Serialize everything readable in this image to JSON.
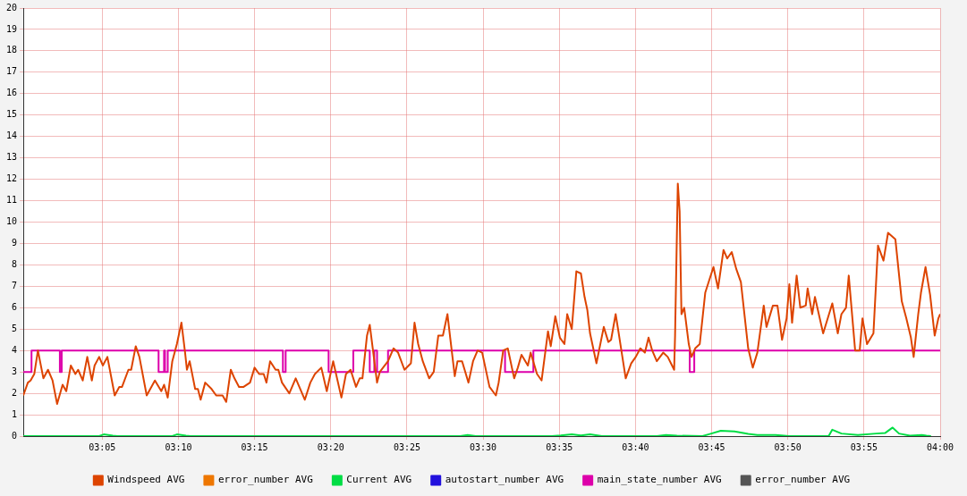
{
  "chart_data": {
    "type": "line",
    "xlim": [
      2.997,
      4.0
    ],
    "ylim": [
      0,
      20
    ],
    "xticks": [
      {
        "value": 3.0833,
        "label": "03:05"
      },
      {
        "value": 3.1667,
        "label": "03:10"
      },
      {
        "value": 3.25,
        "label": "03:15"
      },
      {
        "value": 3.3333,
        "label": "03:20"
      },
      {
        "value": 3.4167,
        "label": "03:25"
      },
      {
        "value": 3.5,
        "label": "03:30"
      },
      {
        "value": 3.5833,
        "label": "03:35"
      },
      {
        "value": 3.6667,
        "label": "03:40"
      },
      {
        "value": 3.75,
        "label": "03:45"
      },
      {
        "value": 3.8333,
        "label": "03:50"
      },
      {
        "value": 3.9167,
        "label": "03:55"
      },
      {
        "value": 4.0,
        "label": "04:00"
      }
    ],
    "yticks": [
      0,
      1,
      2,
      3,
      4,
      5,
      6,
      7,
      8,
      9,
      10,
      11,
      12,
      13,
      14,
      15,
      16,
      17,
      18,
      19,
      20
    ],
    "grid": true,
    "legend": "bottom",
    "marker": "none",
    "line_style": "solid",
    "series": [
      {
        "name": "Windspeed AVG",
        "color": "#dd4400",
        "x": [
          2.997,
          3.002,
          3.005,
          3.009,
          3.013,
          3.019,
          3.024,
          3.029,
          3.034,
          3.04,
          3.044,
          3.049,
          3.054,
          3.057,
          3.062,
          3.067,
          3.072,
          3.075,
          3.08,
          3.084,
          3.089,
          3.097,
          3.102,
          3.105,
          3.112,
          3.115,
          3.12,
          3.124,
          3.132,
          3.141,
          3.148,
          3.151,
          3.155,
          3.16,
          3.165,
          3.17,
          3.174,
          3.176,
          3.179,
          3.185,
          3.188,
          3.191,
          3.196,
          3.203,
          3.208,
          3.215,
          3.219,
          3.224,
          3.228,
          3.233,
          3.238,
          3.245,
          3.25,
          3.255,
          3.26,
          3.263,
          3.267,
          3.273,
          3.276,
          3.28,
          3.288,
          3.295,
          3.305,
          3.311,
          3.316,
          3.323,
          3.329,
          3.336,
          3.345,
          3.35,
          3.355,
          3.361,
          3.365,
          3.368,
          3.373,
          3.376,
          3.384,
          3.387,
          3.396,
          3.402,
          3.407,
          3.414,
          3.421,
          3.425,
          3.429,
          3.434,
          3.441,
          3.446,
          3.451,
          3.456,
          3.461,
          3.464,
          3.469,
          3.472,
          3.477,
          3.484,
          3.489,
          3.494,
          3.499,
          3.507,
          3.514,
          3.517,
          3.522,
          3.527,
          3.534,
          3.538,
          3.542,
          3.549,
          3.552,
          3.559,
          3.564,
          3.571,
          3.574,
          3.579,
          3.584,
          3.589,
          3.592,
          3.597,
          3.602,
          3.607,
          3.611,
          3.614,
          3.617,
          3.624,
          3.632,
          3.637,
          3.64,
          3.645,
          3.648,
          3.656,
          3.662,
          3.667,
          3.672,
          3.677,
          3.681,
          3.685,
          3.69,
          3.697,
          3.702,
          3.709,
          3.71,
          3.713,
          3.715,
          3.717,
          3.72,
          3.725,
          3.728,
          3.732,
          3.737,
          3.743,
          3.752,
          3.757,
          3.763,
          3.767,
          3.772,
          3.777,
          3.782,
          3.79,
          3.795,
          3.8,
          3.807,
          3.81,
          3.817,
          3.822,
          3.827,
          3.832,
          3.835,
          3.838,
          3.843,
          3.847,
          3.853,
          3.855,
          3.86,
          3.863,
          3.872,
          3.877,
          3.882,
          3.888,
          3.892,
          3.897,
          3.9,
          3.907,
          3.912,
          3.915,
          3.92,
          3.927,
          3.932,
          3.938,
          3.943,
          3.951,
          3.958,
          3.963,
          3.968,
          3.971,
          3.976,
          3.979,
          3.984,
          3.989,
          3.994,
          3.998,
          4.0
        ],
        "values": [
          1.9,
          2.5,
          2.6,
          2.9,
          4.0,
          2.7,
          3.1,
          2.6,
          1.5,
          2.4,
          2.1,
          3.3,
          2.9,
          3.1,
          2.6,
          3.7,
          2.6,
          3.3,
          3.7,
          3.3,
          3.7,
          1.9,
          2.3,
          2.3,
          3.1,
          3.1,
          4.2,
          3.7,
          1.9,
          2.6,
          2.1,
          2.4,
          1.8,
          3.5,
          4.3,
          5.3,
          3.9,
          3.1,
          3.5,
          2.2,
          2.2,
          1.7,
          2.5,
          2.2,
          1.9,
          1.9,
          1.6,
          3.1,
          2.7,
          2.3,
          2.3,
          2.5,
          3.2,
          2.9,
          2.9,
          2.5,
          3.5,
          3.1,
          3.1,
          2.5,
          2.0,
          2.7,
          1.7,
          2.5,
          2.9,
          3.2,
          2.1,
          3.5,
          1.8,
          2.9,
          3.1,
          2.3,
          2.7,
          2.7,
          4.7,
          5.2,
          2.5,
          3.0,
          3.5,
          4.1,
          3.9,
          3.1,
          3.4,
          5.3,
          4.3,
          3.5,
          2.7,
          3.0,
          4.7,
          4.7,
          5.7,
          4.6,
          2.8,
          3.5,
          3.5,
          2.5,
          3.5,
          4.0,
          3.9,
          2.3,
          1.9,
          2.5,
          4.0,
          4.1,
          2.7,
          3.2,
          3.8,
          3.3,
          3.9,
          2.9,
          2.6,
          4.9,
          4.2,
          5.6,
          4.6,
          4.3,
          5.7,
          5.0,
          7.7,
          7.6,
          6.5,
          5.9,
          4.8,
          3.4,
          5.1,
          4.4,
          4.5,
          5.7,
          4.9,
          2.7,
          3.4,
          3.7,
          4.1,
          3.9,
          4.6,
          4.0,
          3.5,
          3.9,
          3.7,
          3.1,
          4.7,
          11.8,
          10.5,
          5.7,
          6.0,
          4.3,
          3.7,
          4.1,
          4.3,
          6.7,
          7.9,
          6.9,
          8.7,
          8.3,
          8.6,
          7.8,
          7.2,
          4.1,
          3.2,
          3.9,
          6.1,
          5.1,
          6.1,
          6.1,
          4.5,
          5.5,
          7.1,
          5.3,
          7.5,
          6.0,
          6.1,
          6.9,
          5.7,
          6.5,
          4.8,
          5.5,
          6.2,
          4.8,
          5.7,
          6.0,
          7.5,
          4.0,
          4.0,
          5.5,
          4.3,
          4.8,
          8.9,
          8.2,
          9.5,
          9.2,
          6.3,
          5.5,
          4.6,
          3.7,
          5.7,
          6.7,
          7.9,
          6.6,
          4.7,
          5.5,
          5.7
        ]
      },
      {
        "name": "error_number AVG",
        "color": "#ee7700"
      },
      {
        "name": "Current AVG",
        "color": "#00dd44",
        "x": [
          2.997,
          3.08,
          3.085,
          3.095,
          3.1,
          3.16,
          3.165,
          3.175,
          3.18,
          3.475,
          3.483,
          3.492,
          3.575,
          3.585,
          3.597,
          3.607,
          3.617,
          3.63,
          3.69,
          3.7,
          3.712,
          3.74,
          3.748,
          3.76,
          3.775,
          3.79,
          3.8,
          3.82,
          3.835,
          3.878,
          3.882,
          3.892,
          3.91,
          3.93,
          3.94,
          3.948,
          3.955,
          3.967,
          3.98,
          3.985,
          3.99
        ],
        "values": [
          0,
          0,
          0.08,
          0.02,
          0,
          0,
          0.08,
          0.02,
          0,
          0,
          0.05,
          0,
          0,
          0.03,
          0.08,
          0.03,
          0.08,
          0,
          0,
          0.05,
          0.02,
          0,
          0.1,
          0.25,
          0.22,
          0.1,
          0.05,
          0.05,
          0,
          0,
          0.3,
          0.12,
          0.05,
          0.12,
          0.15,
          0.4,
          0.12,
          0.02,
          0.05,
          0.02,
          0
        ]
      },
      {
        "name": "autostart_number AVG",
        "color": "#2211dd"
      },
      {
        "name": "main_state_number AVG",
        "color": "#dd00aa",
        "type": "step",
        "x": [
          2.997,
          3.006,
          3.037,
          3.039,
          3.145,
          3.151,
          3.152,
          3.155,
          3.281,
          3.284,
          3.331,
          3.358,
          3.376,
          3.381,
          3.384,
          3.396,
          3.524,
          3.555,
          3.726,
          3.731,
          4.0
        ],
        "values": [
          3,
          4,
          3,
          4,
          3,
          4,
          3,
          4,
          3,
          4,
          3,
          4,
          3,
          4,
          3,
          4,
          3,
          4,
          3,
          4,
          4
        ]
      },
      {
        "name": "error_number AVG",
        "color": "#555555"
      }
    ]
  }
}
